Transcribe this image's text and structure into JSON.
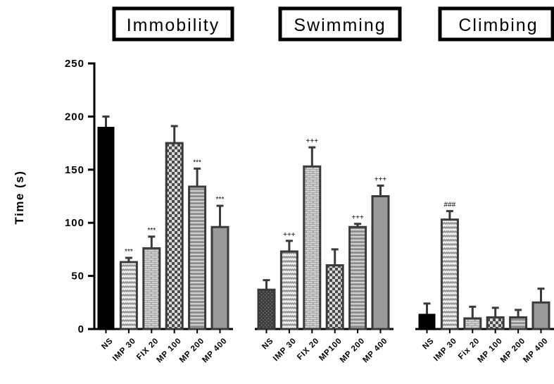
{
  "chart_data": {
    "type": "bar",
    "ylabel": "Time (s)",
    "ylim": [
      0,
      250
    ],
    "yticks": [
      "0",
      "50",
      "100",
      "150",
      "200",
      "250"
    ],
    "grid": false,
    "groups": [
      {
        "title": "Immobility",
        "bars": [
          {
            "label": "NS",
            "value": 190,
            "error": 10,
            "sig": "",
            "pattern": "solid"
          },
          {
            "label": "IMP 30",
            "value": 63,
            "error": 4,
            "sig": "***",
            "pattern": "zigzag"
          },
          {
            "label": "FIX 20",
            "value": 76,
            "error": 11,
            "sig": "***",
            "pattern": "brick"
          },
          {
            "label": "MP 100",
            "value": 175,
            "error": 16,
            "sig": "",
            "pattern": "checker"
          },
          {
            "label": "MP 200",
            "value": 134,
            "error": 17,
            "sig": "***",
            "pattern": "hlines"
          },
          {
            "label": "MP 400",
            "value": 96,
            "error": 20,
            "sig": "***",
            "pattern": "grey"
          }
        ]
      },
      {
        "title": "Swimming",
        "bars": [
          {
            "label": "NS",
            "value": 37,
            "error": 9,
            "sig": "",
            "pattern": "dots"
          },
          {
            "label": "IMP 30",
            "value": 73,
            "error": 10,
            "sig": "+++",
            "pattern": "zigzag"
          },
          {
            "label": "FIX 20",
            "value": 153,
            "error": 18,
            "sig": "+++",
            "pattern": "brick"
          },
          {
            "label": "MP100",
            "value": 60,
            "error": 15,
            "sig": "",
            "pattern": "checker"
          },
          {
            "label": "MP 200",
            "value": 96,
            "error": 3,
            "sig": "+++",
            "pattern": "hlines"
          },
          {
            "label": "MP 400",
            "value": 125,
            "error": 10,
            "sig": "+++",
            "pattern": "grey"
          }
        ]
      },
      {
        "title": "Climbing",
        "bars": [
          {
            "label": "NS",
            "value": 14,
            "error": 10,
            "sig": "",
            "pattern": "solid"
          },
          {
            "label": "IMP 30",
            "value": 103,
            "error": 8,
            "sig": "###",
            "pattern": "zigzag"
          },
          {
            "label": "Fix 20",
            "value": 10,
            "error": 11,
            "sig": "",
            "pattern": "brick"
          },
          {
            "label": "MP 100",
            "value": 11,
            "error": 9,
            "sig": "",
            "pattern": "checker"
          },
          {
            "label": "MP 200",
            "value": 11,
            "error": 7,
            "sig": "",
            "pattern": "hlines"
          },
          {
            "label": "MP 400",
            "value": 25,
            "error": 13,
            "sig": "",
            "pattern": "grey"
          }
        ]
      }
    ]
  },
  "colors": {
    "axis": "#000000",
    "bar_solid": "#000000",
    "bar_grey": "#9a9a9a",
    "bar_edge": "#3a3a3a",
    "pattern_light": "#d4d4d4",
    "pattern_dark": "#555555"
  }
}
